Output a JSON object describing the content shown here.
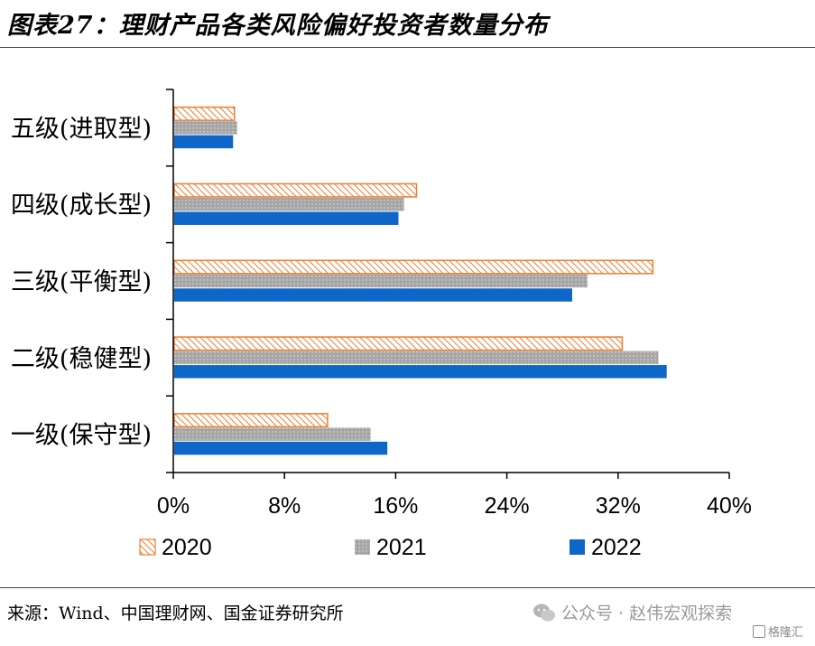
{
  "header": {
    "title": "图表27：理财产品各类风险偏好投资者数量分布"
  },
  "footer": {
    "source": "来源：Wind、中国理财网、国金证券研究所",
    "watermark": "公众号 · 赵伟宏观探索",
    "badge": "格隆汇"
  },
  "chart_data": {
    "type": "bar",
    "orientation": "horizontal",
    "categories": [
      "五级(进取型)",
      "四级(成长型)",
      "三级(平衡型)",
      "二级(稳健型)",
      "一级(保守型)"
    ],
    "series": [
      {
        "name": "2020",
        "values": [
          4.4,
          17.5,
          34.5,
          32.3,
          11.1
        ],
        "color": "#ed7d31",
        "pattern": "hatch"
      },
      {
        "name": "2021",
        "values": [
          4.6,
          16.6,
          29.8,
          34.9,
          14.2
        ],
        "color": "#a5a5a5",
        "pattern": "dots"
      },
      {
        "name": "2022",
        "values": [
          4.3,
          16.2,
          28.7,
          35.5,
          15.4
        ],
        "color": "#0f66c9",
        "pattern": "solid"
      }
    ],
    "xlim": [
      0,
      40
    ],
    "xticks": [
      "0%",
      "8%",
      "16%",
      "24%",
      "32%",
      "40%"
    ],
    "xtick_values": [
      0,
      8,
      16,
      24,
      32,
      40
    ],
    "legend_position": "bottom",
    "grid": false
  }
}
